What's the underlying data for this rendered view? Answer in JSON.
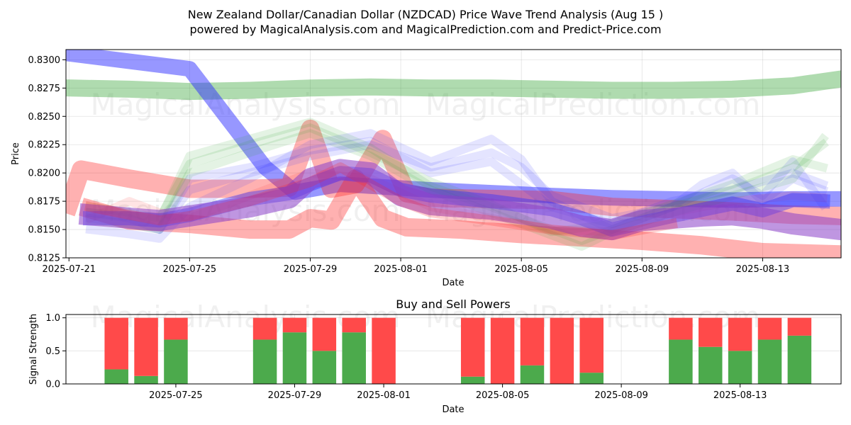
{
  "page": {
    "title": "New Zealand Dollar/Canadian Dollar (NZDCAD) Price Wave Trend Analysis (Aug 15 )",
    "subtitle": "powered by MagicalAnalysis.com and MagicalPrediction.com and Predict-Price.com",
    "watermarks": [
      "MagicalAnalysis.com",
      "MagicalPrediction.com"
    ]
  },
  "colors": {
    "green": "#2ca02c",
    "blue": "#3030ff",
    "red": "#ff2020",
    "purple": "#8a3fc8",
    "buy": "#4caa4c",
    "sell": "#ff4a4a"
  },
  "chart_data": [
    {
      "type": "line",
      "id": "price",
      "xlabel": "Date",
      "ylabel": "Price",
      "xlim": [
        -0.1,
        25.6
      ],
      "ylim": [
        0.8125,
        0.8309
      ],
      "grid": true,
      "x_ticks": [
        {
          "x": 0,
          "label": "2025-07-21"
        },
        {
          "x": 4,
          "label": "2025-07-25"
        },
        {
          "x": 8,
          "label": "2025-07-29"
        },
        {
          "x": 11,
          "label": "2025-08-01"
        },
        {
          "x": 15,
          "label": "2025-08-05"
        },
        {
          "x": 19,
          "label": "2025-08-09"
        },
        {
          "x": 23,
          "label": "2025-08-13"
        }
      ],
      "y_ticks": [
        0.8125,
        0.815,
        0.8175,
        0.82,
        0.8225,
        0.825,
        0.8275,
        0.83
      ],
      "y_tick_labels": [
        "0.8125",
        "0.8150",
        "0.8175",
        "0.8200",
        "0.8225",
        "0.8250",
        "0.8275",
        "0.8300"
      ],
      "series": [
        {
          "name": "green-band-top",
          "color": "green",
          "width": 24,
          "opacity": 0.38,
          "x": [
            0.1,
            2,
            4,
            6,
            8,
            10,
            12,
            14,
            16,
            18,
            20,
            22,
            24,
            25.6
          ],
          "y": [
            0.8275,
            0.8274,
            0.8272,
            0.8273,
            0.8275,
            0.8276,
            0.8275,
            0.8275,
            0.8274,
            0.8273,
            0.8273,
            0.8274,
            0.8277,
            0.8283
          ]
        },
        {
          "name": "blue-decline",
          "color": "blue",
          "width": 22,
          "opacity": 0.5,
          "x": [
            0.1,
            4,
            6.5,
            7.5,
            9,
            12,
            16,
            18,
            20,
            22,
            24,
            25.6
          ],
          "y": [
            0.8305,
            0.8292,
            0.8205,
            0.8183,
            0.819,
            0.8185,
            0.818,
            0.8178,
            0.8177,
            0.8176,
            0.8177,
            0.8177
          ]
        },
        {
          "name": "red-top",
          "color": "red",
          "width": 26,
          "opacity": 0.35,
          "x": [
            0.0,
            0.4,
            2,
            4,
            6,
            7.3,
            8,
            8.7,
            9.5,
            10.4,
            11.2,
            12,
            14,
            16,
            18,
            20,
            22,
            24,
            25.6
          ],
          "y": [
            0.8172,
            0.8203,
            0.8195,
            0.8186,
            0.8186,
            0.8187,
            0.8239,
            0.8186,
            0.819,
            0.823,
            0.8182,
            0.8178,
            0.8177,
            0.8176,
            0.817,
            0.8168,
            0.8166,
            0.8163,
            0.8162
          ]
        },
        {
          "name": "red-bottom",
          "color": "red",
          "width": 26,
          "opacity": 0.35,
          "x": [
            0.7,
            2,
            4,
            6,
            7.3,
            8,
            8.7,
            9.5,
            10.4,
            11.2,
            13,
            15,
            17,
            19,
            21,
            23,
            25.6
          ],
          "y": [
            0.8168,
            0.8158,
            0.8155,
            0.815,
            0.815,
            0.816,
            0.8158,
            0.8195,
            0.816,
            0.8152,
            0.815,
            0.8146,
            0.8143,
            0.814,
            0.8136,
            0.813,
            0.8128
          ]
        },
        {
          "name": "light-blue-1",
          "color": "blue",
          "width": 12,
          "opacity": 0.13,
          "x": [
            0.7,
            2,
            3,
            4,
            6,
            8,
            10,
            12,
            14,
            15,
            16,
            18,
            20,
            21,
            22,
            23,
            24,
            25
          ],
          "y": [
            0.816,
            0.8155,
            0.815,
            0.8185,
            0.82,
            0.8215,
            0.8225,
            0.8205,
            0.8218,
            0.8205,
            0.818,
            0.816,
            0.817,
            0.819,
            0.82,
            0.8175,
            0.8195,
            0.8185
          ]
        },
        {
          "name": "light-blue-2",
          "color": "blue",
          "width": 12,
          "opacity": 0.13,
          "x": [
            0.7,
            2,
            3,
            4,
            6,
            8,
            10,
            12,
            14,
            15,
            16,
            18,
            20,
            22,
            23,
            24,
            25
          ],
          "y": [
            0.815,
            0.8146,
            0.8142,
            0.817,
            0.8195,
            0.8225,
            0.8235,
            0.821,
            0.823,
            0.8212,
            0.8175,
            0.815,
            0.817,
            0.8195,
            0.818,
            0.821,
            0.8172
          ]
        },
        {
          "name": "light-blue-3",
          "color": "blue",
          "width": 12,
          "opacity": 0.13,
          "x": [
            0.7,
            2,
            3,
            4,
            6,
            8,
            10,
            12,
            14,
            16,
            18,
            20,
            22,
            24,
            25
          ],
          "y": [
            0.8165,
            0.816,
            0.815,
            0.8195,
            0.8205,
            0.822,
            0.8228,
            0.82,
            0.821,
            0.817,
            0.8155,
            0.8175,
            0.8185,
            0.82,
            0.819
          ]
        },
        {
          "name": "light-green-1",
          "color": "green",
          "width": 12,
          "opacity": 0.13,
          "x": [
            0.7,
            2,
            3,
            4,
            6,
            8,
            10,
            12,
            14,
            16,
            17,
            18,
            20,
            22,
            24,
            25
          ],
          "y": [
            0.8165,
            0.8162,
            0.8158,
            0.8215,
            0.823,
            0.8245,
            0.8222,
            0.8188,
            0.817,
            0.815,
            0.814,
            0.815,
            0.817,
            0.8185,
            0.8205,
            0.8225
          ]
        },
        {
          "name": "light-green-2",
          "color": "green",
          "width": 12,
          "opacity": 0.13,
          "x": [
            0.7,
            2,
            3,
            4,
            6,
            8,
            10,
            12,
            14,
            16,
            17,
            18,
            20,
            22,
            24,
            25
          ],
          "y": [
            0.8158,
            0.8155,
            0.815,
            0.82,
            0.8218,
            0.8235,
            0.8215,
            0.8185,
            0.8165,
            0.8145,
            0.8135,
            0.8148,
            0.8165,
            0.818,
            0.8195,
            0.823
          ]
        },
        {
          "name": "light-green-3",
          "color": "green",
          "width": 12,
          "opacity": 0.13,
          "x": [
            0.7,
            2,
            3,
            4,
            6,
            8,
            10,
            12,
            14,
            16,
            18,
            20,
            22,
            24,
            25
          ],
          "y": [
            0.817,
            0.8165,
            0.816,
            0.8208,
            0.8225,
            0.824,
            0.8218,
            0.8192,
            0.8172,
            0.8148,
            0.8155,
            0.8172,
            0.819,
            0.8212,
            0.8205
          ]
        },
        {
          "name": "light-red-1",
          "color": "red",
          "width": 12,
          "opacity": 0.12,
          "x": [
            0.7,
            2,
            3,
            4,
            6,
            8,
            10,
            12,
            14,
            16,
            18,
            20,
            22,
            24,
            25
          ],
          "y": [
            0.816,
            0.8175,
            0.8165,
            0.816,
            0.818,
            0.82,
            0.8195,
            0.817,
            0.816,
            0.815,
            0.8148,
            0.8165,
            0.8175,
            0.818,
            0.8178
          ]
        },
        {
          "name": "blue-mid-band",
          "color": "blue",
          "width": 20,
          "opacity": 0.42,
          "x": [
            0.7,
            2,
            3,
            4,
            6,
            7.3,
            8,
            9,
            10,
            11,
            12,
            14,
            16,
            17,
            18,
            20,
            22,
            23,
            24,
            25
          ],
          "y": [
            0.816,
            0.816,
            0.8158,
            0.8163,
            0.8177,
            0.8182,
            0.819,
            0.82,
            0.8198,
            0.8185,
            0.818,
            0.8175,
            0.8168,
            0.816,
            0.815,
            0.8162,
            0.8173,
            0.8167,
            0.8176,
            0.8175
          ]
        },
        {
          "name": "purple-band",
          "color": "purple",
          "width": 30,
          "opacity": 0.55,
          "x": [
            0.7,
            2,
            3,
            4,
            6,
            7.3,
            8,
            9,
            10,
            11,
            12,
            14,
            16,
            17,
            18,
            19,
            20,
            21,
            22,
            23,
            24,
            25.6
          ],
          "y": [
            0.8163,
            0.816,
            0.8158,
            0.8162,
            0.817,
            0.8178,
            0.8195,
            0.8203,
            0.82,
            0.818,
            0.8172,
            0.8168,
            0.816,
            0.8153,
            0.815,
            0.8158,
            0.816,
            0.8162,
            0.8163,
            0.816,
            0.8155,
            0.815
          ]
        },
        {
          "name": "orange-band",
          "color": "red",
          "width": 14,
          "opacity": 0.22,
          "x": [
            0.7,
            2,
            3,
            4,
            6,
            8,
            9,
            10,
            11,
            12,
            14,
            16,
            18,
            20
          ],
          "y": [
            0.817,
            0.8163,
            0.8158,
            0.8162,
            0.8175,
            0.8192,
            0.8205,
            0.819,
            0.8175,
            0.8165,
            0.8158,
            0.815,
            0.8145,
            0.8155
          ]
        }
      ]
    },
    {
      "type": "bar",
      "id": "powers",
      "title": "Buy and Sell Powers",
      "xlabel": "Date",
      "ylabel": "Signal Strength",
      "xlim": [
        0.3,
        26.4
      ],
      "ylim": [
        0,
        1.05
      ],
      "grid": true,
      "x_ticks": [
        {
          "x": 4,
          "label": "2025-07-25"
        },
        {
          "x": 8,
          "label": "2025-07-29"
        },
        {
          "x": 11,
          "label": "2025-08-01"
        },
        {
          "x": 15,
          "label": "2025-08-05"
        },
        {
          "x": 19,
          "label": "2025-08-09"
        },
        {
          "x": 23,
          "label": "2025-08-13"
        }
      ],
      "y_ticks": [
        0.0,
        0.5,
        1.0
      ],
      "y_tick_labels": [
        "0.0",
        "0.5",
        "1.0"
      ],
      "bar_width": 0.8,
      "bars": [
        {
          "x": 2,
          "buy": 0.22,
          "sell": 0.78
        },
        {
          "x": 3,
          "buy": 0.12,
          "sell": 0.88
        },
        {
          "x": 4,
          "buy": 0.67,
          "sell": 0.33
        },
        {
          "x": 7,
          "buy": 0.67,
          "sell": 0.33
        },
        {
          "x": 8,
          "buy": 0.78,
          "sell": 0.22
        },
        {
          "x": 9,
          "buy": 0.5,
          "sell": 0.5
        },
        {
          "x": 10,
          "buy": 0.78,
          "sell": 0.22
        },
        {
          "x": 11,
          "buy": 0.0,
          "sell": 1.0
        },
        {
          "x": 14,
          "buy": 0.11,
          "sell": 0.89
        },
        {
          "x": 15,
          "buy": 0.0,
          "sell": 1.0
        },
        {
          "x": 16,
          "buy": 0.28,
          "sell": 0.72
        },
        {
          "x": 17,
          "buy": 0.0,
          "sell": 1.0
        },
        {
          "x": 18,
          "buy": 0.17,
          "sell": 0.83
        },
        {
          "x": 21,
          "buy": 0.67,
          "sell": 0.33
        },
        {
          "x": 22,
          "buy": 0.56,
          "sell": 0.44
        },
        {
          "x": 23,
          "buy": 0.5,
          "sell": 0.5
        },
        {
          "x": 24,
          "buy": 0.67,
          "sell": 0.33
        },
        {
          "x": 25,
          "buy": 0.73,
          "sell": 0.27
        }
      ]
    }
  ]
}
